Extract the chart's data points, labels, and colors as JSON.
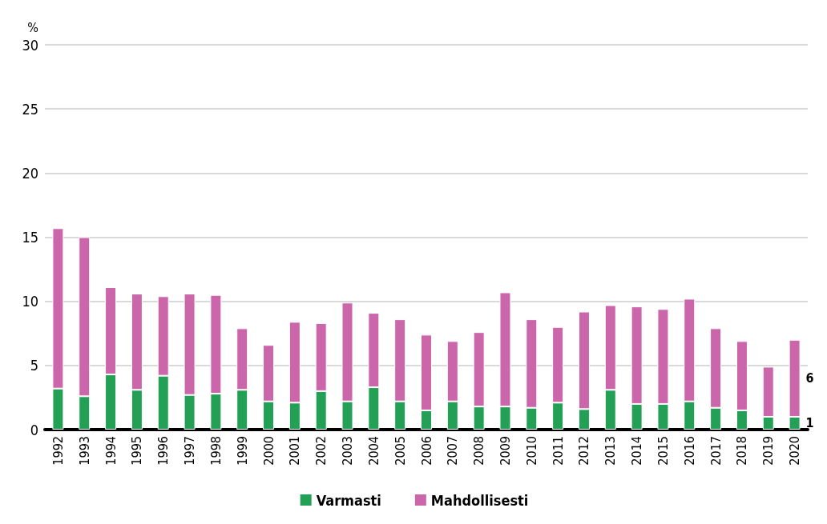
{
  "chart_data": {
    "type": "bar",
    "stacked": true,
    "ylabel": "%",
    "categories": [
      "1992",
      "1993",
      "1994",
      "1995",
      "1996",
      "1997",
      "1998",
      "1999",
      "2000",
      "2001",
      "2002",
      "2003",
      "2004",
      "2005",
      "2006",
      "2007",
      "2008",
      "2009",
      "2010",
      "2011",
      "2012",
      "2013",
      "2014",
      "2015",
      "2016",
      "2017",
      "2018",
      "2019",
      "2020"
    ],
    "series": [
      {
        "name": "Varmasti",
        "color": "#23a055",
        "values": [
          3.2,
          2.6,
          4.3,
          3.1,
          4.2,
          2.7,
          2.8,
          3.1,
          2.2,
          2.1,
          3.0,
          2.2,
          3.3,
          2.2,
          1.5,
          2.2,
          1.8,
          1.8,
          1.7,
          2.1,
          1.6,
          3.1,
          2.0,
          2.0,
          2.2,
          1.7,
          1.5,
          1.0,
          1
        ],
        "value_labels": [
          null,
          null,
          null,
          null,
          null,
          null,
          null,
          null,
          null,
          null,
          null,
          null,
          null,
          null,
          null,
          null,
          null,
          null,
          null,
          null,
          null,
          null,
          null,
          null,
          null,
          null,
          null,
          null,
          "1"
        ]
      },
      {
        "name": "Mahdollisesti",
        "color": "#cc66aa",
        "values": [
          12.5,
          12.4,
          6.8,
          7.5,
          6.2,
          7.9,
          7.7,
          4.8,
          4.4,
          6.3,
          5.3,
          7.7,
          5.8,
          6.4,
          5.9,
          4.7,
          5.8,
          8.9,
          6.9,
          5.9,
          7.6,
          6.6,
          7.6,
          7.4,
          8.0,
          6.2,
          5.4,
          3.9,
          6
        ],
        "value_labels": [
          null,
          null,
          null,
          null,
          null,
          null,
          null,
          null,
          null,
          null,
          null,
          null,
          null,
          null,
          null,
          null,
          null,
          null,
          null,
          null,
          null,
          null,
          null,
          null,
          null,
          null,
          null,
          null,
          "6"
        ]
      }
    ],
    "ylim": [
      0,
      30
    ],
    "yticks": [
      0,
      5,
      10,
      15,
      20,
      25,
      30
    ],
    "grid": "y",
    "legend": "bottom"
  }
}
